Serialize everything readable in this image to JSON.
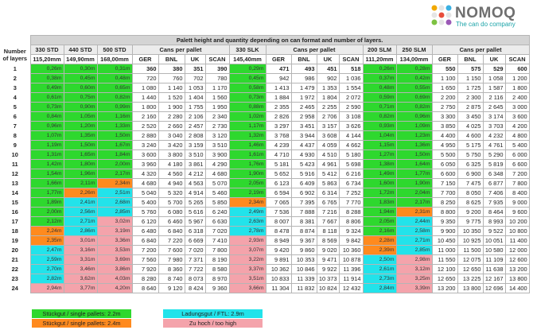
{
  "header": {
    "brand": "NOMOQ",
    "tagline": "The can do company"
  },
  "table": {
    "caption": "Palett height and quantity depending on can format and number of layers.",
    "layers_label": "Number of layers",
    "groups": [
      "330 STD",
      "440 STD",
      "500 STD",
      "Cans per pallet",
      "330 SLK",
      "Cans per pallet",
      "200 SLM",
      "250 SLM",
      "Cans per pallet"
    ],
    "sizes": [
      "115,20mm",
      "149,90mm",
      "168,00mm",
      "145,40mm",
      "111,20mm",
      "134,00mm"
    ],
    "regions": [
      "GER",
      "BNL",
      "UK",
      "SCAN"
    ],
    "rows": [
      {
        "layers": "1",
        "heights": [
          "0,26m",
          "0,30m",
          "0,31m",
          "0,29m",
          "0,26m",
          "0,28m"
        ],
        "colors": [
          "#2ed82e",
          "#2ed82e",
          "#2ed82e",
          "#2ed82e",
          "#2ed82e",
          "#2ed82e"
        ],
        "cans": [
          "360",
          "380",
          "351",
          "390",
          "471",
          "493",
          "451",
          "518",
          "550",
          "575",
          "529",
          "600"
        ]
      },
      {
        "layers": "2",
        "heights": [
          "0,38m",
          "0,45m",
          "0,48m",
          "0,45m",
          "0,37m",
          "0,42m"
        ],
        "colors": [
          "#2ed82e",
          "#2ed82e",
          "#2ed82e",
          "#2ed82e",
          "#2ed82e",
          "#2ed82e"
        ],
        "cans": [
          "720",
          "760",
          "702",
          "780",
          "942",
          "986",
          "902",
          "1 036",
          "1 100",
          "1 150",
          "1 058",
          "1 200"
        ]
      },
      {
        "layers": "3",
        "heights": [
          "0,49m",
          "0,60m",
          "0,65m",
          "0,58m",
          "0,48m",
          "0,55m"
        ],
        "colors": [
          "#2ed82e",
          "#2ed82e",
          "#2ed82e",
          "#2ed82e",
          "#2ed82e",
          "#2ed82e"
        ],
        "cans": [
          "1 080",
          "1 140",
          "1 053",
          "1 170",
          "1 413",
          "1 479",
          "1 353",
          "1 554",
          "1 650",
          "1 725",
          "1 587",
          "1 800"
        ]
      },
      {
        "layers": "4",
        "heights": [
          "0,61m",
          "0,75m",
          "0,82m",
          "0,73m",
          "0,59m",
          "0,69m"
        ],
        "colors": [
          "#2ed82e",
          "#2ed82e",
          "#2ed82e",
          "#2ed82e",
          "#2ed82e",
          "#2ed82e"
        ],
        "cans": [
          "1 440",
          "1 520",
          "1 404",
          "1 560",
          "1 884",
          "1 972",
          "1 804",
          "2 072",
          "2 200",
          "2 300",
          "2 116",
          "2 400"
        ]
      },
      {
        "layers": "5",
        "heights": [
          "0,73m",
          "0,90m",
          "0,99m",
          "0,88m",
          "0,71m",
          "0,82m"
        ],
        "colors": [
          "#2ed82e",
          "#2ed82e",
          "#2ed82e",
          "#2ed82e",
          "#2ed82e",
          "#2ed82e"
        ],
        "cans": [
          "1 800",
          "1 900",
          "1 755",
          "1 950",
          "2 355",
          "2 465",
          "2 255",
          "2 590",
          "2 750",
          "2 875",
          "2 645",
          "3 000"
        ]
      },
      {
        "layers": "6",
        "heights": [
          "0,84m",
          "1,05m",
          "1,16m",
          "1,02m",
          "0,82m",
          "0,96m"
        ],
        "colors": [
          "#2ed82e",
          "#2ed82e",
          "#2ed82e",
          "#2ed82e",
          "#2ed82e",
          "#2ed82e"
        ],
        "cans": [
          "2 160",
          "2 280",
          "2 106",
          "2 340",
          "2 826",
          "2 958",
          "2 706",
          "3 108",
          "3 300",
          "3 450",
          "3 174",
          "3 600"
        ]
      },
      {
        "layers": "7",
        "heights": [
          "0,96m",
          "1,20m",
          "1,33m",
          "1,17m",
          "0,93m",
          "1,09m"
        ],
        "colors": [
          "#2ed82e",
          "#2ed82e",
          "#2ed82e",
          "#2ed82e",
          "#2ed82e",
          "#2ed82e"
        ],
        "cans": [
          "2 520",
          "2 660",
          "2 457",
          "2 730",
          "3 297",
          "3 451",
          "3 157",
          "3 626",
          "3 850",
          "4 025",
          "3 703",
          "4 200"
        ]
      },
      {
        "layers": "8",
        "heights": [
          "1,07m",
          "1,35m",
          "1,50m",
          "1,32m",
          "1,04m",
          "1,23m"
        ],
        "colors": [
          "#2ed82e",
          "#2ed82e",
          "#2ed82e",
          "#2ed82e",
          "#2ed82e",
          "#2ed82e"
        ],
        "cans": [
          "2 880",
          "3 040",
          "2 808",
          "3 120",
          "3 768",
          "3 944",
          "3 608",
          "4 144",
          "4 400",
          "4 600",
          "4 232",
          "4 800"
        ]
      },
      {
        "layers": "9",
        "heights": [
          "1,19m",
          "1,50m",
          "1,67m",
          "1,46m",
          "1,15m",
          "1,36m"
        ],
        "colors": [
          "#2ed82e",
          "#2ed82e",
          "#2ed82e",
          "#2ed82e",
          "#2ed82e",
          "#2ed82e"
        ],
        "cans": [
          "3 240",
          "3 420",
          "3 159",
          "3 510",
          "4 239",
          "4 437",
          "4 059",
          "4 662",
          "4 950",
          "5 175",
          "4 761",
          "5 400"
        ]
      },
      {
        "layers": "10",
        "heights": [
          "1,31m",
          "1,65m",
          "1,84m",
          "1,61m",
          "1,27m",
          "1,50m"
        ],
        "colors": [
          "#2ed82e",
          "#2ed82e",
          "#2ed82e",
          "#2ed82e",
          "#2ed82e",
          "#2ed82e"
        ],
        "cans": [
          "3 600",
          "3 800",
          "3 510",
          "3 900",
          "4 710",
          "4 930",
          "4 510",
          "5 180",
          "5 500",
          "5 750",
          "5 290",
          "6 000"
        ]
      },
      {
        "layers": "11",
        "heights": [
          "1,42m",
          "1,80m",
          "2,00m",
          "1,76m",
          "1,38m",
          "1,64m"
        ],
        "colors": [
          "#2ed82e",
          "#2ed82e",
          "#2ed82e",
          "#2ed82e",
          "#2ed82e",
          "#2ed82e"
        ],
        "cans": [
          "3 960",
          "4 180",
          "3 861",
          "4 290",
          "5 181",
          "5 423",
          "4 961",
          "5 698",
          "6 050",
          "6 325",
          "5 819",
          "6 600"
        ]
      },
      {
        "layers": "12",
        "heights": [
          "1,54m",
          "1,96m",
          "2,17m",
          "1,90m",
          "1,49m",
          "1,77m"
        ],
        "colors": [
          "#2ed82e",
          "#2ed82e",
          "#2ed82e",
          "#2ed82e",
          "#2ed82e",
          "#2ed82e"
        ],
        "cans": [
          "4 320",
          "4 560",
          "4 212",
          "4 680",
          "5 652",
          "5 916",
          "5 412",
          "6 216",
          "6 600",
          "6 900",
          "6 348",
          "7 200"
        ]
      },
      {
        "layers": "13",
        "heights": [
          "1,66m",
          "2,11m",
          "2,34m",
          "2,05m",
          "1,60m",
          "1,90m"
        ],
        "colors": [
          "#2ed82e",
          "#2ed82e",
          "#ff8a1e",
          "#2ed82e",
          "#2ed82e",
          "#2ed82e"
        ],
        "cans": [
          "4 680",
          "4 940",
          "4 563",
          "5 070",
          "6 123",
          "6 409",
          "5 863",
          "6 734",
          "7 150",
          "7 475",
          "6 877",
          "7 800"
        ]
      },
      {
        "layers": "14",
        "heights": [
          "1,77m",
          "2,26m",
          "2,51m",
          "2,19m",
          "1,72m",
          "2,04m"
        ],
        "colors": [
          "#2ed82e",
          "#ff8a1e",
          "#22e3ea",
          "#2ed82e",
          "#2ed82e",
          "#2ed82e"
        ],
        "cans": [
          "5 040",
          "5 320",
          "4 914",
          "5 460",
          "6 594",
          "6 902",
          "6 314",
          "7 252",
          "7 700",
          "8 050",
          "7 406",
          "8 400"
        ]
      },
      {
        "layers": "15",
        "heights": [
          "1,89m",
          "2,41m",
          "2,68m",
          "2,34m",
          "1,83m",
          "2,17m"
        ],
        "colors": [
          "#2ed82e",
          "#22e3ea",
          "#22e3ea",
          "#ff8a1e",
          "#2ed82e",
          "#2ed82e"
        ],
        "cans": [
          "5 400",
          "5 700",
          "5 265",
          "5 850",
          "7 065",
          "7 395",
          "6 765",
          "7 770",
          "8 250",
          "8 625",
          "7 935",
          "9 000"
        ]
      },
      {
        "layers": "16",
        "heights": [
          "2,00m",
          "2,56m",
          "2,85m",
          "2,49m",
          "1,94m",
          "2,31m"
        ],
        "colors": [
          "#2ed82e",
          "#22e3ea",
          "#22e3ea",
          "#22e3ea",
          "#2ed82e",
          "#ff8a1e"
        ],
        "cans": [
          "5 760",
          "6 080",
          "5 616",
          "6 240",
          "7 536",
          "7 888",
          "7 216",
          "8 288",
          "8 800",
          "9 200",
          "8 464",
          "9 600"
        ]
      },
      {
        "layers": "17",
        "heights": [
          "2,12m",
          "2,71m",
          "3,02m",
          "2,63m",
          "2,05m",
          "2,44m"
        ],
        "colors": [
          "#2ed82e",
          "#22e3ea",
          "#f4a3ab",
          "#22e3ea",
          "#2ed82e",
          "#22e3ea"
        ],
        "cans": [
          "6 120",
          "6 460",
          "5 967",
          "6 630",
          "8 007",
          "8 381",
          "7 667",
          "8 806",
          "9 350",
          "9 775",
          "8 993",
          "10 200"
        ]
      },
      {
        "layers": "18",
        "heights": [
          "2,24m",
          "2,86m",
          "3,19m",
          "2,78m",
          "2,16m",
          "2,58m"
        ],
        "colors": [
          "#ff8a1e",
          "#22e3ea",
          "#f4a3ab",
          "#22e3ea",
          "#2ed82e",
          "#22e3ea"
        ],
        "cans": [
          "6 480",
          "6 840",
          "6 318",
          "7 020",
          "8 478",
          "8 874",
          "8 118",
          "9 324",
          "9 900",
          "10 350",
          "9 522",
          "10 800"
        ]
      },
      {
        "layers": "19",
        "heights": [
          "2,35m",
          "3,01m",
          "3,36m",
          "2,93m",
          "2,28m",
          "2,71m"
        ],
        "colors": [
          "#ff8a1e",
          "#f4a3ab",
          "#f4a3ab",
          "#f4a3ab",
          "#ff8a1e",
          "#22e3ea"
        ],
        "cans": [
          "6 840",
          "7 220",
          "6 669",
          "7 410",
          "8 949",
          "9 367",
          "8 569",
          "9 842",
          "10 450",
          "10 925",
          "10 051",
          "11 400"
        ]
      },
      {
        "layers": "20",
        "heights": [
          "2,47m",
          "3,16m",
          "3,53m",
          "3,07m",
          "2,39m",
          "2,85m"
        ],
        "colors": [
          "#22e3ea",
          "#f4a3ab",
          "#f4a3ab",
          "#f4a3ab",
          "#ff8a1e",
          "#22e3ea"
        ],
        "cans": [
          "7 200",
          "7 600",
          "7 020",
          "7 800",
          "9 420",
          "9 860",
          "9 020",
          "10 360",
          "11 000",
          "11 500",
          "10 580",
          "12 000"
        ]
      },
      {
        "layers": "21",
        "heights": [
          "2,59m",
          "3,31m",
          "3,69m",
          "3,22m",
          "2,50m",
          "2,98m"
        ],
        "colors": [
          "#22e3ea",
          "#f4a3ab",
          "#f4a3ab",
          "#f4a3ab",
          "#22e3ea",
          "#f4a3ab"
        ],
        "cans": [
          "7 560",
          "7 980",
          "7 371",
          "8 190",
          "9 891",
          "10 353",
          "9 471",
          "10 878",
          "11 550",
          "12 075",
          "11 109",
          "12 600"
        ]
      },
      {
        "layers": "22",
        "heights": [
          "2,70m",
          "3,46m",
          "3,86m",
          "3,37m",
          "2,61m",
          "3,12m"
        ],
        "colors": [
          "#22e3ea",
          "#f4a3ab",
          "#f4a3ab",
          "#f4a3ab",
          "#22e3ea",
          "#f4a3ab"
        ],
        "cans": [
          "7 920",
          "8 360",
          "7 722",
          "8 580",
          "10 362",
          "10 846",
          "9 922",
          "11 396",
          "12 100",
          "12 650",
          "11 638",
          "13 200"
        ]
      },
      {
        "layers": "23",
        "heights": [
          "2,82m",
          "3,62m",
          "4,03m",
          "3,51m",
          "2,73m",
          "3,25m"
        ],
        "colors": [
          "#22e3ea",
          "#f4a3ab",
          "#f4a3ab",
          "#f4a3ab",
          "#22e3ea",
          "#f4a3ab"
        ],
        "cans": [
          "8 280",
          "8 740",
          "8 073",
          "8 970",
          "10 833",
          "11 339",
          "10 373",
          "11 914",
          "12 650",
          "13 225",
          "12 167",
          "13 800"
        ]
      },
      {
        "layers": "24",
        "heights": [
          "2,94m",
          "3,77m",
          "4,20m",
          "3,66m",
          "2,84m",
          "3,39m"
        ],
        "colors": [
          "#f4a3ab",
          "#f4a3ab",
          "#f4a3ab",
          "#f4a3ab",
          "#22e3ea",
          "#f4a3ab"
        ],
        "cans": [
          "8 640",
          "9 120",
          "8 424",
          "9 360",
          "11 304",
          "11 832",
          "10 824",
          "12 432",
          "13 200",
          "13 800",
          "12 696",
          "14 400"
        ]
      }
    ]
  },
  "legend": [
    {
      "label": "Stückgut / single pallets: 2.2m",
      "color": "#2ed82e"
    },
    {
      "label": "Stückgut / single pallets: 2.4m",
      "color": "#ff8a1e"
    },
    {
      "label": "Ladungsgut / FTL: 2.9m",
      "color": "#22e3ea"
    },
    {
      "label": "Zu hoch / too high",
      "color": "#f4a3ab"
    }
  ]
}
